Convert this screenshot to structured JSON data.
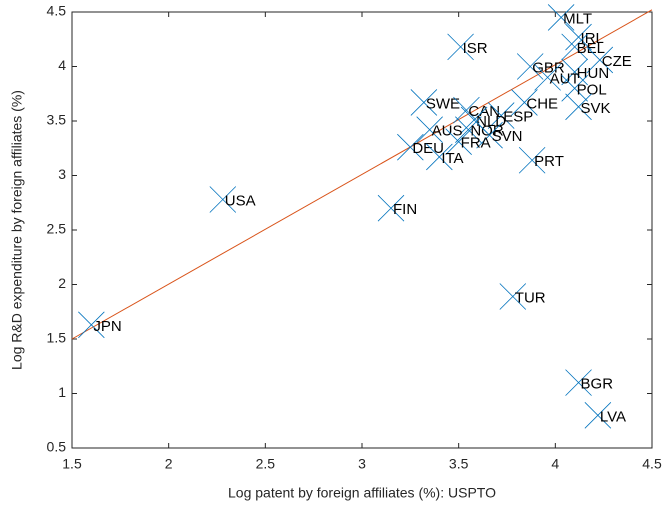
{
  "chart_data": {
    "type": "scatter",
    "x_label": "Log patent by foreign affiliates (%): USPTO",
    "y_label": "Log R&D expenditure by foreign affiliates (%)",
    "labels": [
      "MLT",
      "IRL",
      "BEL",
      "CZE",
      "HUN",
      "GBR",
      "AUT",
      "ISR",
      "POL",
      "SWE",
      "CAN",
      "ESP",
      "CHE",
      "SVK",
      "NLD",
      "AUS",
      "NOR",
      "SVN",
      "FRA",
      "DEU",
      "ITA",
      "PRT",
      "USA",
      "FIN",
      "TUR",
      "JPN",
      "BGR",
      "LVA"
    ],
    "x": [
      4.03,
      4.12,
      4.1,
      4.23,
      4.1,
      3.87,
      3.96,
      3.51,
      4.1,
      3.32,
      3.54,
      3.72,
      3.84,
      4.12,
      3.58,
      3.35,
      3.55,
      3.66,
      3.5,
      3.25,
      3.4,
      3.88,
      2.28,
      3.15,
      3.78,
      1.6,
      4.12,
      4.22
    ],
    "values": [
      4.45,
      4.27,
      4.18,
      4.06,
      3.95,
      4.0,
      3.9,
      4.18,
      3.8,
      3.67,
      3.6,
      3.55,
      3.67,
      3.63,
      3.51,
      3.42,
      3.42,
      3.37,
      3.31,
      3.26,
      3.17,
      3.14,
      2.78,
      2.7,
      1.89,
      1.63,
      1.1,
      0.8
    ],
    "color": "#0072bd",
    "fit_line": {
      "x": [
        1.5,
        4.5
      ],
      "y": [
        1.5,
        4.52
      ],
      "color": "#d95319"
    },
    "xlim": [
      1.5,
      4.5
    ],
    "xticks": [
      1.5,
      2,
      2.5,
      3,
      3.5,
      4,
      4.5
    ],
    "ylim": [
      0.5,
      4.5
    ],
    "yticks": [
      0.5,
      1,
      1.5,
      2,
      2.5,
      3,
      3.5,
      4,
      4.5
    ],
    "grid": false
  }
}
